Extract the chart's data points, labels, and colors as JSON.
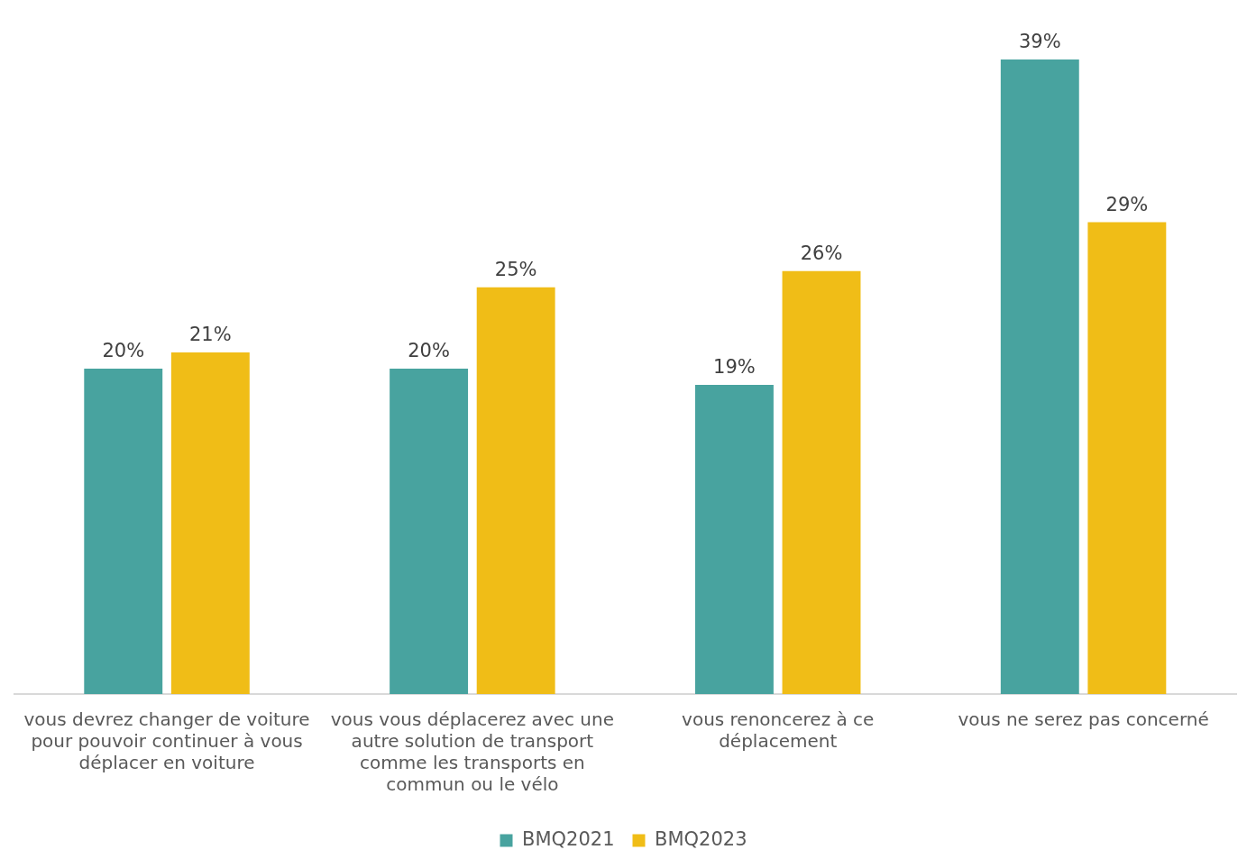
{
  "chart_data": {
    "type": "bar",
    "categories": [
      "vous devrez changer de voiture pour pouvoir continuer à vous déplacer en voiture",
      "vous vous déplacerez avec une autre solution de transport comme les transports en commun ou le vélo",
      "vous renoncerez à ce déplacement",
      "vous ne serez pas concerné"
    ],
    "series": [
      {
        "name": "BMQ2021",
        "color": "#48a39f",
        "values": [
          20,
          20,
          19,
          39
        ],
        "value_labels": [
          "20%",
          "20%",
          "19%",
          "39%"
        ]
      },
      {
        "name": "BMQ2023",
        "color": "#f0bd17",
        "values": [
          21,
          25,
          26,
          29
        ],
        "value_labels": [
          "21%",
          "25%",
          "26%",
          "29%"
        ]
      }
    ],
    "grid": false,
    "legend": "bottom",
    "tick_labels": "x"
  }
}
